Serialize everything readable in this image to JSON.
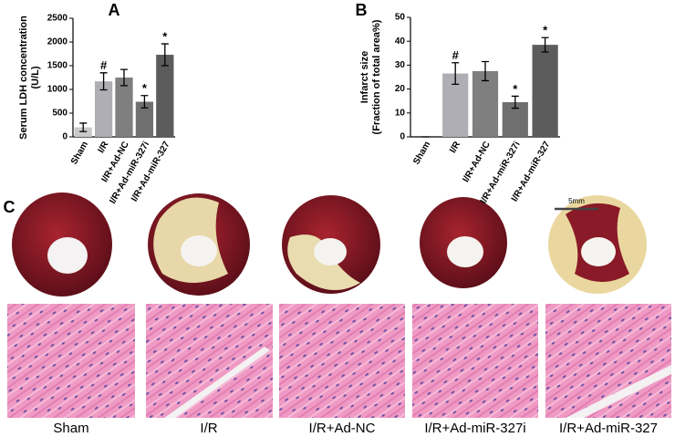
{
  "panels": [
    "A",
    "B",
    "C"
  ],
  "chart_data": [
    {
      "type": "bar",
      "y_label": [
        "Serum LDH concentration",
        "(U/L)"
      ],
      "categories": [
        "Sham",
        "I/R",
        "I/R+Ad-NC",
        "I/R+Ad-miR-327i",
        "I/R+Ad-miR-327"
      ],
      "values": [
        200,
        1170,
        1250,
        740,
        1730
      ],
      "errors": [
        90,
        180,
        170,
        130,
        230
      ],
      "annotations": [
        null,
        "#",
        null,
        "*",
        "*"
      ],
      "colors": [
        "#c9c9c9",
        "#aeaeb4",
        "#7f7f7f",
        "#6f6f6f",
        "#5c5c5c"
      ],
      "ylim": [
        0,
        2500
      ],
      "yticks": [
        0,
        500,
        1000,
        1500,
        2000,
        2500
      ]
    },
    {
      "type": "bar",
      "y_label": [
        "Infarct size",
        "(Fraction of total area%)"
      ],
      "categories": [
        "Sham",
        "I/R",
        "I/R+Ad-NC",
        "I/R+Ad-miR-327i",
        "I/R+Ad-miR-327"
      ],
      "values": [
        0,
        26.5,
        27.5,
        14.5,
        38.5
      ],
      "errors": [
        0,
        4.5,
        4,
        2.5,
        3
      ],
      "annotations": [
        null,
        "#",
        null,
        "*",
        "*"
      ],
      "colors": [
        "#c9c9c9",
        "#aeaeb4",
        "#7f7f7f",
        "#6f6f6f",
        "#5c5c5c"
      ],
      "ylim": [
        0,
        50
      ],
      "yticks": [
        0,
        10,
        20,
        30,
        40,
        50
      ]
    }
  ],
  "scale_bar": "5mm",
  "groups": [
    "Sham",
    "I/R",
    "I/R+Ad-NC",
    "I/R+Ad-miR-327i",
    "I/R+Ad-miR-327"
  ]
}
